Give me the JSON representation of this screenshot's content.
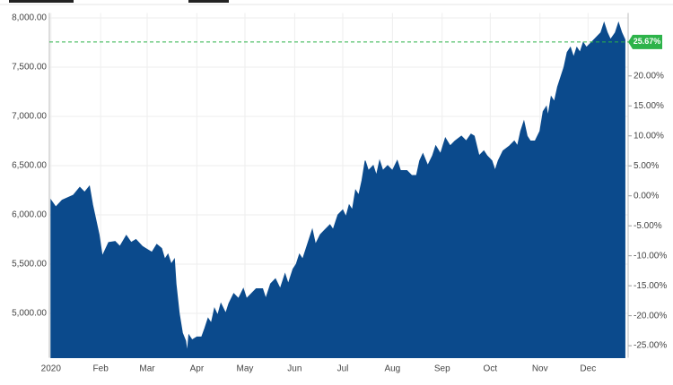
{
  "chart_data": {
    "type": "area",
    "x": [
      0,
      3,
      7,
      14,
      18,
      21,
      24,
      26,
      28,
      30,
      32,
      36,
      40,
      43,
      47,
      50,
      53,
      57,
      60,
      63,
      66,
      69,
      71,
      73,
      75,
      77,
      78,
      80,
      82,
      84,
      85,
      86,
      88,
      91,
      94,
      96,
      98,
      100,
      102,
      104,
      106,
      109,
      111,
      114,
      117,
      120,
      122,
      125,
      128,
      132,
      134,
      137,
      140,
      143,
      146,
      148,
      151,
      153,
      155,
      157,
      160,
      163,
      165,
      168,
      171,
      174,
      176,
      179,
      182,
      184,
      186,
      188,
      190,
      192,
      194,
      196,
      198,
      201,
      203,
      205,
      207,
      210,
      213,
      216,
      218,
      222,
      225,
      228,
      230,
      232,
      235,
      238,
      240,
      243,
      246,
      249,
      252,
      256,
      259,
      262,
      264,
      267,
      270,
      272,
      275,
      277,
      279,
      282,
      286,
      289,
      291,
      293,
      295,
      297,
      299,
      302,
      305,
      307,
      309,
      310,
      312,
      314,
      316,
      318,
      320,
      322,
      324,
      326,
      328,
      330,
      332,
      334,
      337,
      340,
      343,
      345,
      347,
      349,
      352,
      354,
      356,
      358
    ],
    "series": [
      {
        "color": "#0b4a8c",
        "values": [
          6150,
          6080,
          6150,
          6200,
          6280,
          6230,
          6290,
          6100,
          5950,
          5800,
          5580,
          5720,
          5730,
          5680,
          5790,
          5720,
          5750,
          5680,
          5650,
          5620,
          5700,
          5660,
          5550,
          5600,
          5500,
          5550,
          5300,
          5000,
          4800,
          4720,
          4600,
          4780,
          4730,
          4760,
          4760,
          4850,
          4950,
          4900,
          5050,
          4980,
          5100,
          5000,
          5100,
          5200,
          5150,
          5250,
          5150,
          5200,
          5250,
          5250,
          5150,
          5300,
          5350,
          5250,
          5400,
          5300,
          5450,
          5500,
          5600,
          5550,
          5700,
          5850,
          5700,
          5800,
          5850,
          5900,
          5850,
          6000,
          6050,
          5980,
          6100,
          6050,
          6250,
          6200,
          6350,
          6550,
          6450,
          6500,
          6400,
          6550,
          6450,
          6500,
          6450,
          6550,
          6450,
          6450,
          6400,
          6400,
          6550,
          6620,
          6500,
          6600,
          6700,
          6620,
          6780,
          6700,
          6750,
          6800,
          6750,
          6820,
          6800,
          6600,
          6650,
          6600,
          6550,
          6450,
          6550,
          6650,
          6700,
          6750,
          6700,
          6850,
          6950,
          6800,
          6750,
          6750,
          6850,
          7050,
          7100,
          7000,
          7200,
          7150,
          7300,
          7400,
          7500,
          7650,
          7700,
          7600,
          7700,
          7650,
          7750,
          7700,
          7750,
          7800,
          7850,
          7950,
          7850,
          7780,
          7850,
          7950,
          7850,
          7780
        ]
      }
    ],
    "xlim": [
      -1,
      360
    ],
    "xticks": [
      {
        "value": 0,
        "label": "2020"
      },
      {
        "value": 31,
        "label": "Feb"
      },
      {
        "value": 60,
        "label": "Mar"
      },
      {
        "value": 91,
        "label": "Apr"
      },
      {
        "value": 121,
        "label": "May"
      },
      {
        "value": 152,
        "label": "Jun"
      },
      {
        "value": 182,
        "label": "Jul"
      },
      {
        "value": 213,
        "label": "Aug"
      },
      {
        "value": 244,
        "label": "Sep"
      },
      {
        "value": 274,
        "label": "Oct"
      },
      {
        "value": 305,
        "label": "Nov"
      },
      {
        "value": 335,
        "label": "Dec"
      }
    ],
    "ylim": [
      4550,
      8050
    ],
    "yticks": [
      {
        "value": 5000,
        "label": "5,000.00"
      },
      {
        "value": 5500,
        "label": "5,500.00"
      },
      {
        "value": 6000,
        "label": "6,000.00"
      },
      {
        "value": 6500,
        "label": "6,500.00"
      },
      {
        "value": 7000,
        "label": "7,000.00"
      },
      {
        "value": 7500,
        "label": "7,500.00"
      },
      {
        "value": 8000,
        "label": "8,000.00"
      }
    ],
    "y2lim": [
      -27,
      30.5
    ],
    "y2ticks": [
      {
        "value": -25,
        "label": "-25.00%"
      },
      {
        "value": -20,
        "label": "-20.00%"
      },
      {
        "value": -15,
        "label": "-15.00%"
      },
      {
        "value": -10,
        "label": "-10.00%"
      },
      {
        "value": -5,
        "label": "-5.00%"
      },
      {
        "value": 0,
        "label": "0.00%"
      },
      {
        "value": 5,
        "label": "5.00%"
      },
      {
        "value": 10,
        "label": "10.00%"
      },
      {
        "value": 15,
        "label": "15.00%"
      },
      {
        "value": 20,
        "label": "20.00%"
      }
    ],
    "reference_line": {
      "value": 25.67,
      "label": "25.67%",
      "color": "#2db34a"
    },
    "grid": true
  }
}
